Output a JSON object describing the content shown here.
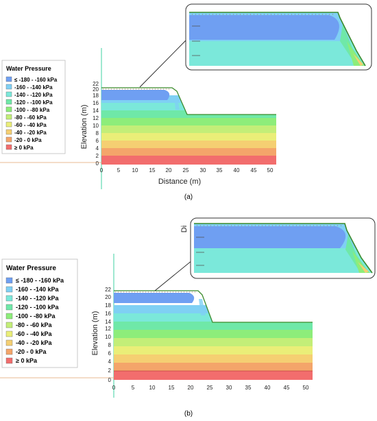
{
  "legend": {
    "title": "Water Pressure",
    "items": [
      {
        "label": "≤ -180 - -160 kPa",
        "color": "#6f9ff2"
      },
      {
        "label": "-160 - -140 kPa",
        "color": "#7fd0f4"
      },
      {
        "label": "-140 - -120 kPa",
        "color": "#7be8da"
      },
      {
        "label": "-120 - -100 kPa",
        "color": "#6fe8a8"
      },
      {
        "label": "-100 - -80 kPa",
        "color": "#8ded7a"
      },
      {
        "label": "-80 - -60 kPa",
        "color": "#c3ee78"
      },
      {
        "label": "-60 - -40 kPa",
        "color": "#eaee78"
      },
      {
        "label": "-40 - -20 kPa",
        "color": "#f5cf72"
      },
      {
        "label": "-20 - 0 kPa",
        "color": "#f4a56a"
      },
      {
        "label": "≥ 0 kPa",
        "color": "#f26d6d"
      }
    ]
  },
  "panels": [
    {
      "caption": "(a)",
      "ylabel": "Elevation (m)",
      "xlabel": "Distance (m)",
      "stray_label": ""
    },
    {
      "caption": "(b)",
      "ylabel": "Elevation (m)",
      "xlabel": "",
      "stray_label": "Di"
    }
  ],
  "chart_data": {
    "type": "heatmap",
    "x_ticks": [
      0,
      5,
      10,
      15,
      20,
      25,
      30,
      35,
      40,
      45,
      50
    ],
    "y_ticks": [
      0,
      2,
      4,
      6,
      8,
      10,
      12,
      14,
      16,
      18,
      20,
      22
    ],
    "xlim": [
      0,
      52
    ],
    "ylim": [
      0,
      22
    ],
    "slope_profile": [
      [
        0,
        22
      ],
      [
        21,
        22
      ],
      [
        22.5,
        21
      ],
      [
        26,
        14
      ],
      [
        52,
        14
      ],
      [
        52,
        0
      ],
      [
        0,
        0
      ]
    ],
    "bands_m": [
      [
        0,
        2
      ],
      [
        2,
        4
      ],
      [
        4,
        6
      ],
      [
        6,
        8
      ],
      [
        8,
        10
      ],
      [
        10,
        12
      ],
      [
        12,
        14
      ],
      [
        14,
        16
      ],
      [
        16,
        18
      ],
      [
        18,
        22
      ]
    ]
  }
}
